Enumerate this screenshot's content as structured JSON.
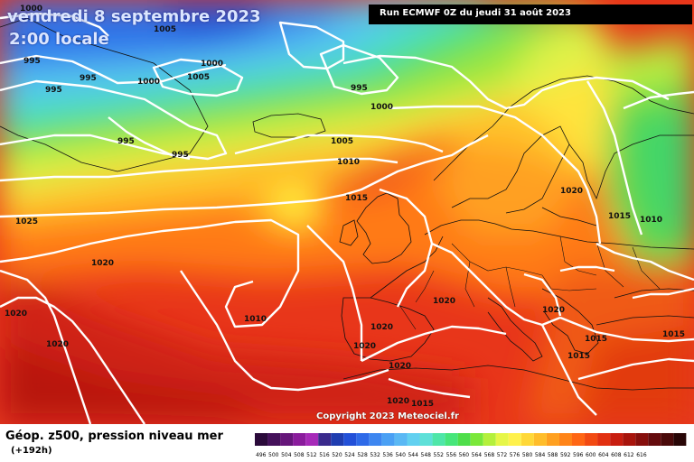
{
  "header": {
    "valid_date": "vendredi 8 septembre 2023",
    "valid_time": "2:00 locale",
    "run": "Run ECMWF 0Z du jeudi 31 août 2023"
  },
  "footer": {
    "title": "Géop. z500, pression niveau mer",
    "lead": "(+192h)",
    "copyright": "Copyright 2023 Meteociel.fr"
  },
  "colors": {
    "palette": [
      "#2a0a3a",
      "#44115a",
      "#66167a",
      "#8a1c9c",
      "#a62ab8",
      "#3a2a8c",
      "#1f3db0",
      "#2250d8",
      "#2e6ae8",
      "#3d86f0",
      "#4aa0f4",
      "#5ab8f4",
      "#62d0f0",
      "#5ee0d8",
      "#4ee6a8",
      "#46e67a",
      "#4ede4a",
      "#7ae83a",
      "#b4f03c",
      "#e6f648",
      "#fff14c",
      "#ffd838",
      "#ffbd2a",
      "#ffa020",
      "#ff8418",
      "#ff6614",
      "#f24a12",
      "#e23010",
      "#c81e10",
      "#a8140c",
      "#860e0c",
      "#640a0c",
      "#4a0a0a",
      "#280606"
    ]
  },
  "scale_labels": [
    "496",
    "500",
    "504",
    "508",
    "512",
    "516",
    "520",
    "524",
    "528",
    "532",
    "536",
    "540",
    "544",
    "548",
    "552",
    "556",
    "560",
    "564",
    "568",
    "572",
    "576",
    "580",
    "584",
    "588",
    "592",
    "596",
    "600",
    "604",
    "608",
    "612",
    "616"
  ],
  "isobar_labels": [
    {
      "id": "iso-1000-nw",
      "text": "1000"
    },
    {
      "id": "iso-1005-top",
      "text": "1005"
    },
    {
      "id": "iso-995-a",
      "text": "995"
    },
    {
      "id": "iso-995-b",
      "text": "995"
    },
    {
      "id": "iso-995-c",
      "text": "995"
    },
    {
      "id": "iso-1000-a",
      "text": "1000"
    },
    {
      "id": "iso-1000-b",
      "text": "1000"
    },
    {
      "id": "iso-1005-a",
      "text": "1005"
    },
    {
      "id": "iso-995-d",
      "text": "995"
    },
    {
      "id": "iso-995-e",
      "text": "995"
    },
    {
      "id": "iso-995-f",
      "text": "995"
    },
    {
      "id": "iso-1000-c",
      "text": "1000"
    },
    {
      "id": "iso-1005-b",
      "text": "1005"
    },
    {
      "id": "iso-1010-a",
      "text": "1010"
    },
    {
      "id": "iso-1015-a",
      "text": "1015"
    },
    {
      "id": "iso-1025",
      "text": "1025"
    },
    {
      "id": "iso-1020-a",
      "text": "1020"
    },
    {
      "id": "iso-1020-b",
      "text": "1020"
    },
    {
      "id": "iso-1020-c",
      "text": "1020"
    },
    {
      "id": "iso-1010-b",
      "text": "1010"
    },
    {
      "id": "iso-1020-d",
      "text": "1020"
    },
    {
      "id": "iso-1020-e",
      "text": "1020"
    },
    {
      "id": "iso-1020-f",
      "text": "1020"
    },
    {
      "id": "iso-1020-g",
      "text": "1020"
    },
    {
      "id": "iso-1020-h",
      "text": "1020"
    },
    {
      "id": "iso-1015-b",
      "text": "1015"
    },
    {
      "id": "iso-1020-i",
      "text": "1020"
    },
    {
      "id": "iso-1020-j",
      "text": "1020"
    },
    {
      "id": "iso-1015-c",
      "text": "1015"
    },
    {
      "id": "iso-1015-d",
      "text": "1015"
    },
    {
      "id": "iso-1015-e",
      "text": "1015"
    },
    {
      "id": "iso-1015-f",
      "text": "1015"
    },
    {
      "id": "iso-1010-c",
      "text": "1010"
    }
  ]
}
